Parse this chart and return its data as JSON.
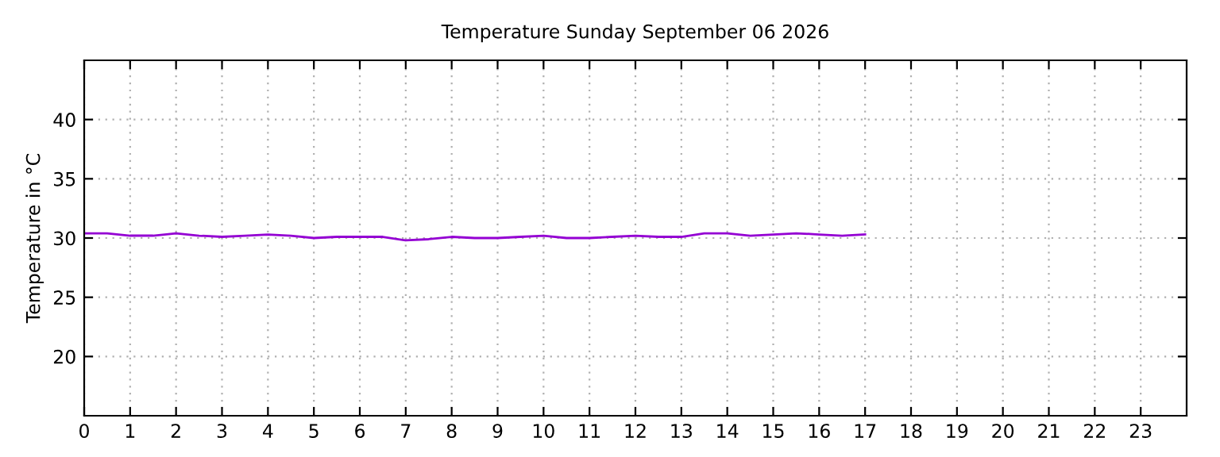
{
  "chart_data": {
    "type": "line",
    "title": "Temperature Sunday September 06 2026",
    "ylabel": "Temperature in °C",
    "x": [
      0,
      0.5,
      1,
      1.5,
      2,
      2.5,
      3,
      3.5,
      4,
      4.5,
      5,
      5.5,
      6,
      6.5,
      7,
      7.5,
      8,
      8.5,
      9,
      9.5,
      10,
      10.5,
      11,
      11.5,
      12,
      12.5,
      13,
      13.5,
      14,
      14.5,
      15,
      15.5,
      16,
      16.5,
      17
    ],
    "series": [
      {
        "color": "#9400d3",
        "values": [
          30.4,
          30.4,
          30.2,
          30.2,
          30.4,
          30.2,
          30.1,
          30.2,
          30.3,
          30.2,
          30.0,
          30.1,
          30.1,
          30.1,
          29.8,
          29.9,
          30.1,
          30.0,
          30.0,
          30.1,
          30.2,
          30.0,
          30.0,
          30.1,
          30.2,
          30.1,
          30.1,
          30.4,
          30.4,
          30.2,
          30.3,
          30.4,
          30.3,
          30.2,
          30.3
        ]
      }
    ],
    "xlim": [
      0,
      24
    ],
    "xticks": [
      0,
      1,
      2,
      3,
      4,
      5,
      6,
      7,
      8,
      9,
      10,
      11,
      12,
      13,
      14,
      15,
      16,
      17,
      18,
      19,
      20,
      21,
      22,
      23
    ],
    "ylim": [
      15,
      45
    ],
    "yticks": [
      20,
      25,
      30,
      35,
      40
    ],
    "grid": true,
    "line_style": "solid",
    "marker": "none"
  }
}
